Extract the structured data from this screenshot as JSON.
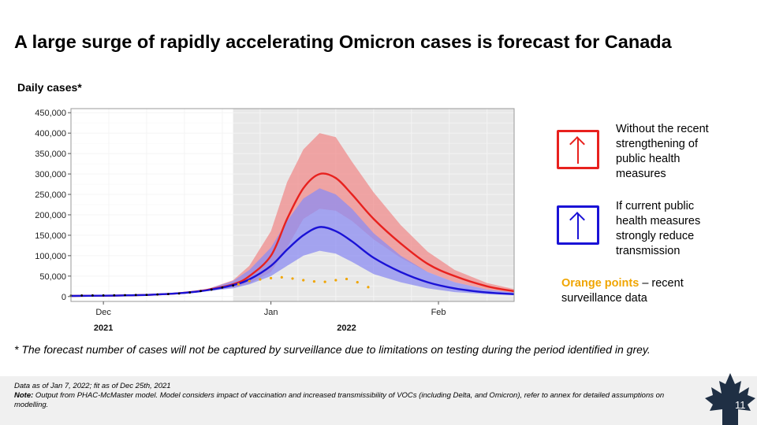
{
  "title": "A large surge of rapidly accelerating Omicron cases is forecast for Canada",
  "footnote": "* The forecast number of cases will not be captured by surveillance due to limitations on testing during the period identified in grey.",
  "footer": {
    "line1": "Data as of Jan 7, 2022; fit as of Dec 25th, 2021",
    "note_label": "Note:",
    "note_text": " Output from PHAC-McMaster model. Model considers impact of vaccination and increased transmissibility of VOCs (including Delta, and Omicron), refer to annex for detailed assumptions on modelling."
  },
  "page_number": "11",
  "legend": {
    "red": "Without the recent strengthening of public health measures",
    "blue": "If current public health measures strongly reduce transmission",
    "orange_label": "Orange points",
    "orange_text": " – recent surveillance data"
  },
  "colors": {
    "red": "#e8211e",
    "blue": "#1a12d6",
    "orange": "#f0a500",
    "red_band": "#f08c8c",
    "blue_band": "#8c8cf2",
    "grey_region": "#e8e8e8"
  },
  "chart_data": {
    "type": "line",
    "ylabel": "Daily cases*",
    "ylim": [
      0,
      450000
    ],
    "yticks": [
      0,
      50000,
      100000,
      150000,
      200000,
      250000,
      300000,
      350000,
      400000,
      450000
    ],
    "ytick_labels": [
      "0",
      "50,000",
      "100,000",
      "150,000",
      "200,000",
      "250,000",
      "300,000",
      "350,000",
      "400,000",
      "450,000"
    ],
    "xlim": [
      "2021-11-25",
      "2022-02-15"
    ],
    "xticks": [
      {
        "date": "2021-12-01",
        "label": "Dec"
      },
      {
        "date": "2022-01-01",
        "label": "Jan"
      },
      {
        "date": "2022-02-01",
        "label": "Feb"
      }
    ],
    "year_labels": [
      {
        "date": "2021-12-01",
        "label": "2021"
      },
      {
        "date": "2022-01-15",
        "label": "2022"
      }
    ],
    "grey_region": [
      "2021-12-25",
      "2022-02-15"
    ],
    "grid": true,
    "series": [
      {
        "key": "red",
        "x": [
          "2021-11-25",
          "2021-12-01",
          "2021-12-05",
          "2021-12-10",
          "2021-12-15",
          "2021-12-20",
          "2021-12-25",
          "2021-12-28",
          "2022-01-01",
          "2022-01-04",
          "2022-01-07",
          "2022-01-10",
          "2022-01-13",
          "2022-01-16",
          "2022-01-20",
          "2022-01-25",
          "2022-01-30",
          "2022-02-04",
          "2022-02-10",
          "2022-02-15"
        ],
        "values": [
          1500,
          2000,
          2800,
          4500,
          8000,
          16000,
          30000,
          50000,
          100000,
          190000,
          265000,
          300000,
          290000,
          250000,
          190000,
          130000,
          80000,
          50000,
          25000,
          13000
        ],
        "lower": [
          1500,
          2000,
          2800,
          4500,
          8000,
          15000,
          22000,
          32000,
          60000,
          120000,
          190000,
          215000,
          210000,
          185000,
          140000,
          95000,
          60000,
          35000,
          17000,
          9000
        ],
        "upper": [
          1500,
          2000,
          2800,
          4500,
          8000,
          17000,
          40000,
          75000,
          160000,
          280000,
          360000,
          400000,
          390000,
          330000,
          255000,
          175000,
          110000,
          65000,
          33000,
          18000
        ]
      },
      {
        "key": "blue",
        "x": [
          "2021-11-25",
          "2021-12-01",
          "2021-12-05",
          "2021-12-10",
          "2021-12-15",
          "2021-12-20",
          "2021-12-25",
          "2021-12-28",
          "2022-01-01",
          "2022-01-04",
          "2022-01-07",
          "2022-01-10",
          "2022-01-13",
          "2022-01-16",
          "2022-01-20",
          "2022-01-25",
          "2022-01-30",
          "2022-02-04",
          "2022-02-10",
          "2022-02-15"
        ],
        "values": [
          1500,
          2000,
          2800,
          4500,
          8000,
          15000,
          28000,
          42000,
          75000,
          115000,
          150000,
          170000,
          160000,
          135000,
          95000,
          60000,
          35000,
          20000,
          10000,
          6000
        ],
        "lower": [
          1500,
          2000,
          2800,
          4500,
          8000,
          13000,
          20000,
          30000,
          50000,
          75000,
          100000,
          112000,
          105000,
          85000,
          55000,
          35000,
          20000,
          11000,
          6000,
          3500
        ],
        "upper": [
          1500,
          2000,
          2800,
          4500,
          8000,
          17000,
          38000,
          65000,
          120000,
          185000,
          240000,
          265000,
          250000,
          215000,
          155000,
          100000,
          60000,
          35000,
          17000,
          10000
        ]
      }
    ],
    "observed": {
      "key": "black",
      "x": [
        "2021-11-25",
        "2021-11-27",
        "2021-11-29",
        "2021-12-01",
        "2021-12-03",
        "2021-12-05",
        "2021-12-07",
        "2021-12-09",
        "2021-12-11",
        "2021-12-13",
        "2021-12-15",
        "2021-12-17",
        "2021-12-19",
        "2021-12-21",
        "2021-12-23",
        "2021-12-25"
      ],
      "values": [
        2500,
        2600,
        2800,
        3000,
        3200,
        3400,
        3800,
        4200,
        5000,
        6000,
        7500,
        10000,
        13500,
        17000,
        22000,
        27000
      ]
    },
    "surveillance": {
      "key": "orange",
      "x": [
        "2021-12-26",
        "2021-12-28",
        "2021-12-30",
        "2022-01-01",
        "2022-01-03",
        "2022-01-05",
        "2022-01-07",
        "2022-01-09",
        "2022-01-11",
        "2022-01-13",
        "2022-01-15",
        "2022-01-17",
        "2022-01-19"
      ],
      "values": [
        30000,
        38000,
        42000,
        45000,
        47000,
        44000,
        40000,
        37000,
        36000,
        40000,
        43000,
        35000,
        23000
      ]
    }
  }
}
